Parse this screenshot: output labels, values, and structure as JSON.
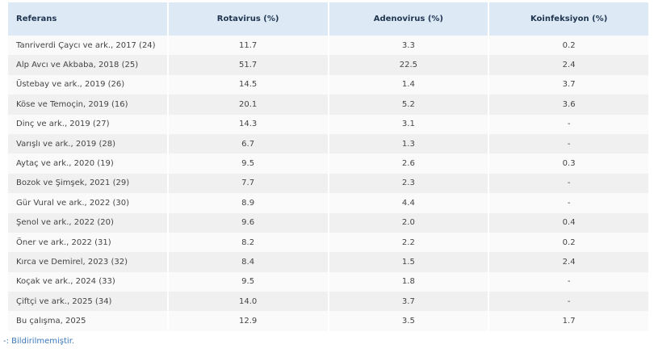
{
  "table": {
    "header": [
      "Referans",
      "Rotavirus (%)",
      "Adenovirus (%)",
      "Koinfeksiyon (%)"
    ],
    "rows": [
      [
        "Tanriverdi Çaycı ve ark., 2017 (24)",
        "11.7",
        "3.3",
        "0.2"
      ],
      [
        "Alp Avcı ve Akbaba, 2018 (25)",
        "51.7",
        "22.5",
        "2.4"
      ],
      [
        "Üstebay ve ark., 2019 (26)",
        "14.5",
        "1.4",
        "3.7"
      ],
      [
        "Köse ve Temoçin, 2019 (16)",
        "20.1",
        "5.2",
        "3.6"
      ],
      [
        "Dinç ve ark., 2019 (27)",
        "14.3",
        "3.1",
        "-"
      ],
      [
        "Varışlı ve ark., 2019 (28)",
        "6.7",
        "1.3",
        "-"
      ],
      [
        "Aytaç ve ark., 2020 (19)",
        "9.5",
        "2.6",
        "0.3"
      ],
      [
        "Bozok ve Şimşek, 2021 (29)",
        "7.7",
        "2.3",
        "-"
      ],
      [
        "Gür Vural ve ark., 2022 (30)",
        "8.9",
        "4.4",
        "-"
      ],
      [
        "Şenol ve ark., 2022 (20)",
        "9.6",
        "2.0",
        "0.4"
      ],
      [
        "Öner ve ark., 2022 (31)",
        "8.2",
        "2.2",
        "0.2"
      ],
      [
        "Kırca ve Demirel, 2023 (32)",
        "8.4",
        "1.5",
        "2.4"
      ],
      [
        "Koçak ve ark., 2024 (33)",
        "9.5",
        "1.8",
        "-"
      ],
      [
        "Çiftçi ve ark., 2025 (34)",
        "14.0",
        "3.7",
        "-"
      ],
      [
        "Bu çalışma, 2025",
        "12.9",
        "3.5",
        "1.7"
      ]
    ]
  },
  "footnote": "-: Bildirilmemiştir."
}
